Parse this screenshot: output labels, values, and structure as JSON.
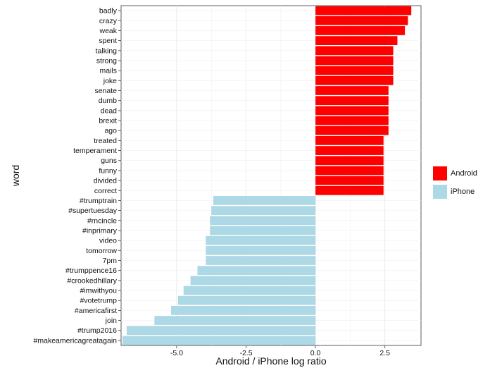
{
  "chart_data": {
    "type": "bar",
    "orientation": "horizontal",
    "xlabel": "Android / iPhone log ratio",
    "ylabel": "word",
    "xlim": [
      -7.0,
      3.8
    ],
    "xticks": [
      -5.0,
      -2.5,
      0.0,
      2.5
    ],
    "xtick_labels": [
      "-5.0",
      "-2.5",
      "0.0",
      "2.5"
    ],
    "grid": true,
    "legend_position": "right",
    "categories": [
      "badly",
      "crazy",
      "weak",
      "spent",
      "talking",
      "strong",
      "mails",
      "joke",
      "senate",
      "dumb",
      "dead",
      "brexit",
      "ago",
      "treated",
      "temperament",
      "guns",
      "funny",
      "divided",
      "correct",
      "#trumptrain",
      "#supertuesday",
      "#rncincle",
      "#inprimary",
      "video",
      "tomorrow",
      "7pm",
      "#trumppence16",
      "#crookedhillary",
      "#imwithyou",
      "#votetrump",
      "#americafirst",
      "join",
      "#trump2016",
      "#makeamericagreatagain"
    ],
    "values": [
      3.45,
      3.33,
      3.22,
      2.95,
      2.8,
      2.8,
      2.8,
      2.8,
      2.63,
      2.63,
      2.63,
      2.63,
      2.63,
      2.45,
      2.45,
      2.45,
      2.45,
      2.45,
      2.45,
      -3.68,
      -3.75,
      -3.8,
      -3.8,
      -3.95,
      -3.95,
      -3.95,
      -4.25,
      -4.5,
      -4.75,
      -4.95,
      -5.2,
      -5.8,
      -6.8,
      -6.95
    ],
    "groups": [
      "Android",
      "Android",
      "Android",
      "Android",
      "Android",
      "Android",
      "Android",
      "Android",
      "Android",
      "Android",
      "Android",
      "Android",
      "Android",
      "Android",
      "Android",
      "Android",
      "Android",
      "Android",
      "Android",
      "iPhone",
      "iPhone",
      "iPhone",
      "iPhone",
      "iPhone",
      "iPhone",
      "iPhone",
      "iPhone",
      "iPhone",
      "iPhone",
      "iPhone",
      "iPhone",
      "iPhone",
      "iPhone",
      "iPhone"
    ],
    "series": [
      {
        "name": "Android",
        "color": "#ff0000"
      },
      {
        "name": "iPhone",
        "color": "#add8e6"
      }
    ]
  }
}
